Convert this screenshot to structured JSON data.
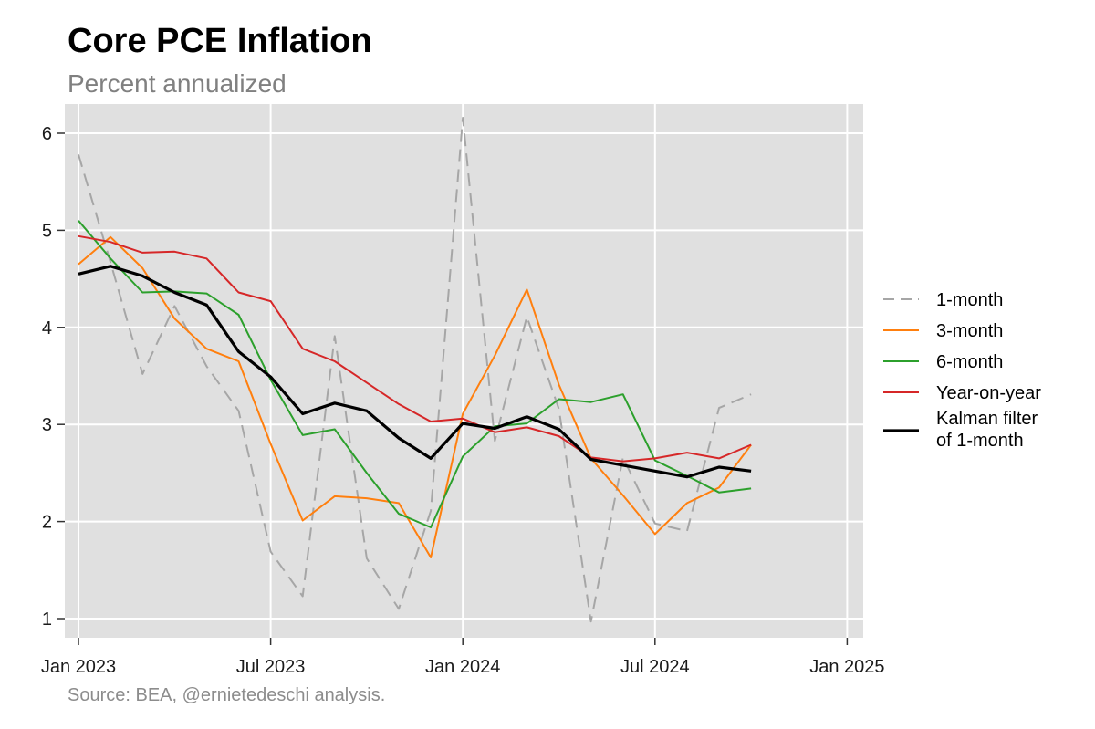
{
  "title": "Core PCE Inflation",
  "subtitle": "Percent annualized",
  "caption": "Source: BEA, @ernietedeschi analysis.",
  "chart_data": {
    "type": "line",
    "xlabel": "",
    "ylabel": "",
    "x_start": "2023-01",
    "x_range": [
      "2023-01",
      "2025-01"
    ],
    "ylim": [
      0.8,
      6.3
    ],
    "y_ticks": [
      1,
      2,
      3,
      4,
      5,
      6
    ],
    "x_ticks": [
      {
        "date": "2023-01",
        "label": "Jan 2023"
      },
      {
        "date": "2023-07",
        "label": "Jul 2023"
      },
      {
        "date": "2024-01",
        "label": "Jan 2024"
      },
      {
        "date": "2024-07",
        "label": "Jul 2024"
      },
      {
        "date": "2025-01",
        "label": "Jan 2025"
      }
    ],
    "grid": true,
    "legend_position": "right",
    "series": [
      {
        "name": "1-month",
        "color": "#a6a6a6",
        "dash": true,
        "values": [
          5.78,
          4.67,
          3.52,
          4.22,
          3.6,
          3.14,
          1.69,
          1.23,
          3.91,
          1.62,
          1.1,
          2.11,
          6.16,
          2.83,
          4.11,
          3.16,
          0.97,
          2.66,
          1.98,
          1.9,
          3.17,
          3.31
        ]
      },
      {
        "name": "3-month",
        "color": "#ff7f0e",
        "dash": false,
        "values": [
          4.65,
          4.93,
          4.61,
          4.09,
          3.78,
          3.65,
          2.8,
          2.01,
          2.26,
          2.24,
          2.19,
          1.63,
          3.11,
          3.71,
          4.39,
          3.41,
          2.65,
          2.27,
          1.87,
          2.19,
          2.35,
          2.79
        ]
      },
      {
        "name": "6-month",
        "color": "#2ca02c",
        "dash": false,
        "values": [
          5.1,
          4.71,
          4.36,
          4.37,
          4.35,
          4.13,
          3.46,
          2.89,
          2.95,
          2.5,
          2.08,
          1.94,
          2.67,
          2.98,
          3.01,
          3.26,
          3.23,
          3.31,
          2.63,
          2.47,
          2.3,
          2.34
        ]
      },
      {
        "name": "Year-on-year",
        "color": "#d62728",
        "dash": false,
        "values": [
          4.94,
          4.88,
          4.77,
          4.78,
          4.71,
          4.36,
          4.27,
          3.78,
          3.65,
          3.43,
          3.21,
          3.03,
          3.06,
          2.92,
          2.97,
          2.88,
          2.66,
          2.62,
          2.65,
          2.71,
          2.65,
          2.79
        ]
      },
      {
        "name": "Kalman filter of 1-month",
        "name_lines": [
          "Kalman filter",
          "of 1-month"
        ],
        "color": "#000000",
        "dash": false,
        "bold": true,
        "values": [
          4.55,
          4.63,
          4.53,
          4.36,
          4.23,
          3.75,
          3.49,
          3.11,
          3.22,
          3.14,
          2.86,
          2.65,
          3.01,
          2.96,
          3.08,
          2.95,
          2.64,
          2.58,
          2.52,
          2.46,
          2.56,
          2.52
        ]
      }
    ]
  }
}
